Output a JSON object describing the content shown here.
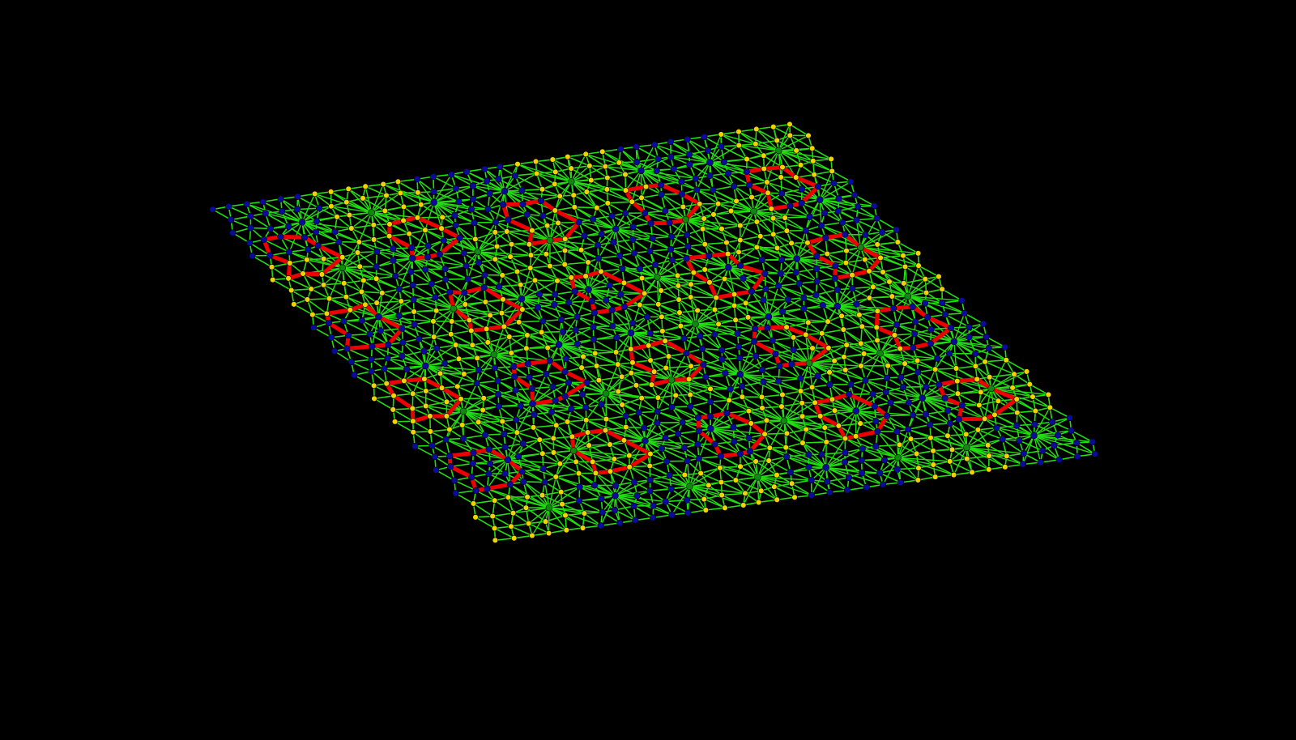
{
  "scene": {
    "background": "#000000",
    "mesh_edge_color": "#22dd11",
    "highlight_edge_color": "#ee0000",
    "node_colors": {
      "yellow": "#f2d200",
      "blue": "#0a0a9c"
    },
    "hub_color": "#118811"
  }
}
